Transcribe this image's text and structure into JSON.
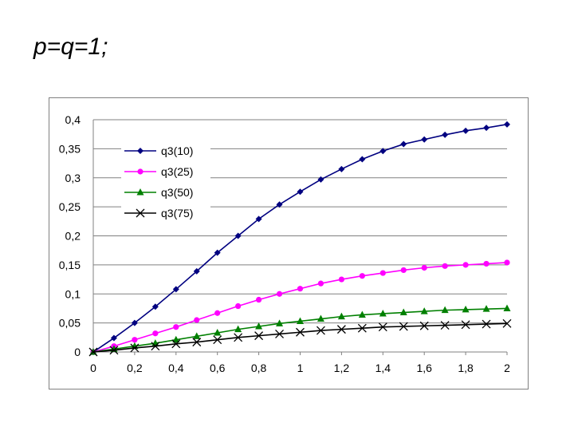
{
  "slide": {
    "title": "p=q=1;"
  },
  "chart_data": {
    "type": "line",
    "x": [
      0,
      0.1,
      0.2,
      0.3,
      0.4,
      0.5,
      0.6,
      0.7,
      0.8,
      0.9,
      1,
      1.1,
      1.2,
      1.3,
      1.4,
      1.5,
      1.6,
      1.7,
      1.8,
      1.9,
      2
    ],
    "xlim": [
      0,
      2
    ],
    "ylim": [
      0,
      0.4
    ],
    "xticks": [
      "0",
      "0,2",
      "0,4",
      "0,6",
      "0,8",
      "1",
      "1,2",
      "1,4",
      "1,6",
      "1,8",
      "2"
    ],
    "yticks": [
      "0",
      "0,05",
      "0,1",
      "0,15",
      "0,2",
      "0,25",
      "0,3",
      "0,35",
      "0,4"
    ],
    "grid": "horizontal",
    "legend_position": "top-left",
    "series": [
      {
        "name": "q3(10)",
        "color": "#000080",
        "marker": "diamond",
        "values": [
          0,
          0.024,
          0.05,
          0.078,
          0.108,
          0.139,
          0.171,
          0.2,
          0.229,
          0.254,
          0.276,
          0.297,
          0.315,
          0.332,
          0.346,
          0.358,
          0.366,
          0.374,
          0.381,
          0.386,
          0.392
        ]
      },
      {
        "name": "q3(25)",
        "color": "#FF00FF",
        "marker": "circle",
        "values": [
          0,
          0.01,
          0.021,
          0.032,
          0.043,
          0.055,
          0.067,
          0.079,
          0.09,
          0.1,
          0.109,
          0.118,
          0.125,
          0.131,
          0.136,
          0.141,
          0.145,
          0.148,
          0.15,
          0.152,
          0.154
        ]
      },
      {
        "name": "q3(50)",
        "color": "#008000",
        "marker": "triangle",
        "values": [
          0,
          0.005,
          0.01,
          0.015,
          0.021,
          0.027,
          0.033,
          0.039,
          0.044,
          0.049,
          0.053,
          0.057,
          0.061,
          0.064,
          0.066,
          0.068,
          0.07,
          0.072,
          0.073,
          0.074,
          0.075
        ]
      },
      {
        "name": "q3(75)",
        "color": "#000000",
        "marker": "x",
        "values": [
          0,
          0.003,
          0.007,
          0.01,
          0.014,
          0.017,
          0.021,
          0.025,
          0.028,
          0.031,
          0.034,
          0.037,
          0.039,
          0.041,
          0.043,
          0.044,
          0.045,
          0.046,
          0.047,
          0.048,
          0.049
        ]
      }
    ]
  }
}
